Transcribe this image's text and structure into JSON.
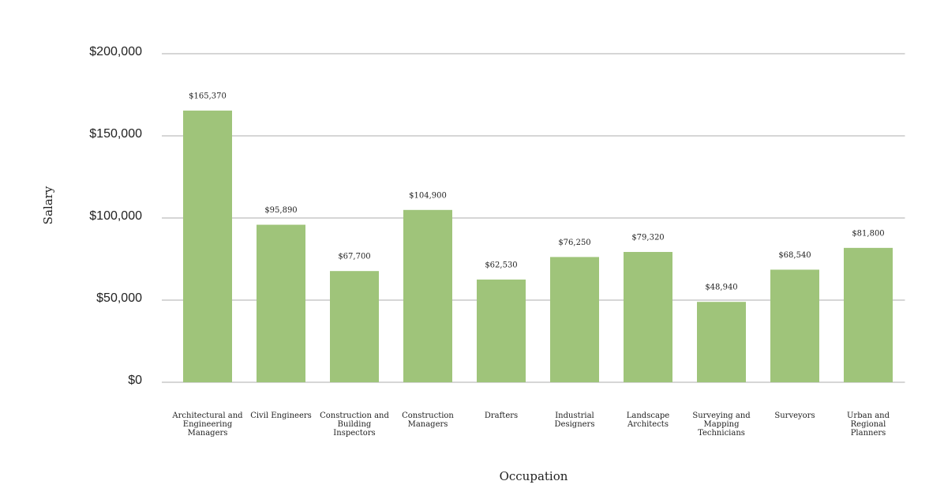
{
  "chart_data": {
    "type": "bar",
    "x_label": "Occupation",
    "y_label": "Salary",
    "categories": [
      "Architectural and Engineering Managers",
      "Civil Engineers",
      "Construction and Building Inspectors",
      "Construction Managers",
      "Drafters",
      "Industrial Designers",
      "Landscape Architects",
      "Surveying and Mapping Technicians",
      "Surveyors",
      "Urban and Regional Planners"
    ],
    "values": [
      165370,
      95890,
      67700,
      104900,
      62530,
      76250,
      79320,
      48940,
      68540,
      81800
    ],
    "value_labels": [
      "$165,370",
      "$95,890",
      "$67,700",
      "$104,900",
      "$62,530",
      "$76,250",
      "$79,320",
      "$48,940",
      "$68,540",
      "$81,800"
    ],
    "color": "#9fc47a",
    "ylim": [
      0,
      200000
    ],
    "yticks": [
      {
        "value": 0,
        "label": "$0"
      },
      {
        "value": 50000,
        "label": "$50,000"
      },
      {
        "value": 100000,
        "label": "$100,000"
      },
      {
        "value": 150000,
        "label": "$150,000"
      },
      {
        "value": 200000,
        "label": "$200,000"
      }
    ],
    "grid": true
  }
}
